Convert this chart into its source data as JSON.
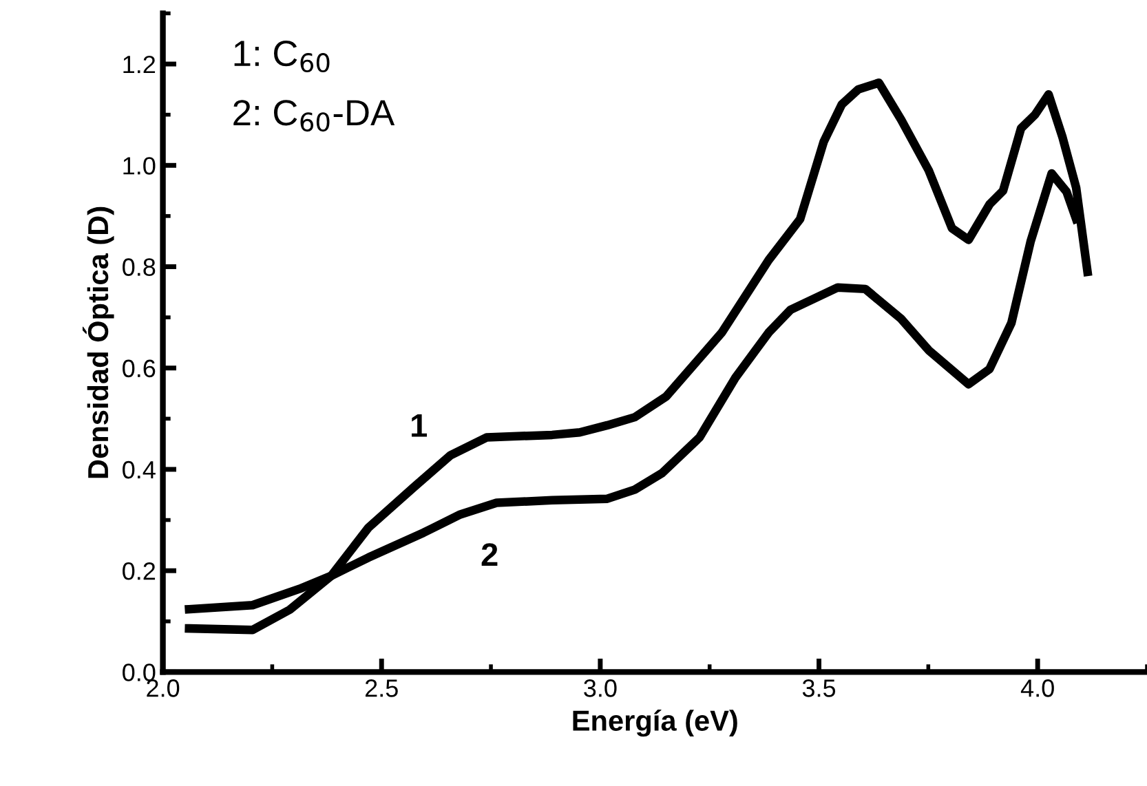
{
  "chart_data": {
    "type": "line",
    "xlabel": "Energía (eV)",
    "ylabel": "Densidad Óptica (D)",
    "xlim": [
      2.0,
      4.25
    ],
    "ylim": [
      0.0,
      1.3
    ],
    "xticks": [
      {
        "value": 2,
        "label": "2.0"
      },
      2.5,
      {
        "value": 3,
        "label": "3.0"
      },
      3.5,
      {
        "value": 4,
        "label": "4.0"
      }
    ],
    "yticks": [
      {
        "value": 0,
        "label": "0.0"
      },
      0.2,
      0.4,
      0.6,
      0.8,
      {
        "value": 1,
        "label": "1.0"
      },
      1.2
    ],
    "grid": false,
    "legend": false,
    "marker": "none",
    "line_style": "solid",
    "annotations": [
      "1: C$_{60}$",
      "2: C$_{60}$-DA",
      "1",
      "2"
    ],
    "series": [
      {
        "color": "#000000",
        "x": [
          2.06,
          2.205,
          2.29,
          2.385,
          2.47,
          2.574,
          2.658,
          2.74,
          2.89,
          2.953,
          3.016,
          3.079,
          3.151,
          3.278,
          3.385,
          3.457,
          3.511,
          3.552,
          3.59,
          3.637,
          3.688,
          3.751,
          3.804,
          3.842,
          3.89,
          3.921,
          3.962,
          3.994,
          4.025,
          4.057,
          4.088,
          4.114
        ],
        "values": [
          0.086,
          0.083,
          0.123,
          0.19,
          0.285,
          0.365,
          0.428,
          0.463,
          0.468,
          0.473,
          0.487,
          0.503,
          0.544,
          0.67,
          0.813,
          0.894,
          1.047,
          1.12,
          1.15,
          1.163,
          1.09,
          0.99,
          0.876,
          0.853,
          0.923,
          0.95,
          1.073,
          1.1,
          1.14,
          1.055,
          0.956,
          0.79
        ]
      },
      {
        "color": "#000000",
        "x": [
          2.06,
          2.205,
          2.312,
          2.385,
          2.47,
          2.596,
          2.68,
          2.763,
          2.89,
          3.016,
          3.079,
          3.142,
          3.227,
          3.309,
          3.385,
          3.435,
          3.543,
          3.606,
          3.688,
          3.751,
          3.842,
          3.89,
          3.94,
          3.984,
          4.032,
          4.066,
          4.088
        ],
        "values": [
          0.124,
          0.132,
          0.164,
          0.19,
          0.226,
          0.275,
          0.311,
          0.334,
          0.339,
          0.342,
          0.36,
          0.393,
          0.463,
          0.581,
          0.67,
          0.715,
          0.759,
          0.756,
          0.697,
          0.635,
          0.568,
          0.598,
          0.689,
          0.85,
          0.984,
          0.948,
          0.894
        ]
      }
    ]
  }
}
